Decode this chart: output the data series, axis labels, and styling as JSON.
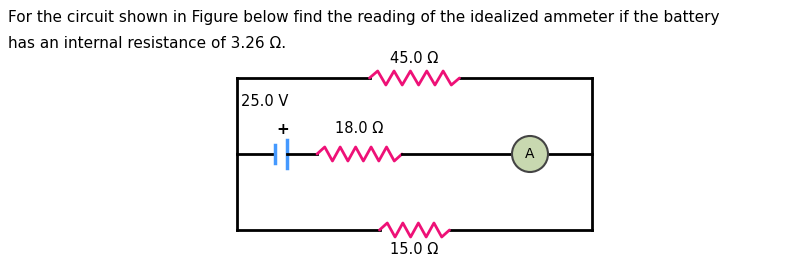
{
  "title_line1": "For the circuit shown in Figure below find the reading of the idealized ammeter if the battery",
  "title_line2": "has an internal resistance of 3.26 Ω.",
  "title_color": "#000000",
  "title_fontsize": 11.0,
  "bg_color": "#ffffff",
  "resistor_color": "#ee1177",
  "wire_color": "#000000",
  "battery_color": "#4499ff",
  "ammeter_fill": "#c8d8b0",
  "ammeter_edge": "#444444",
  "label_45": "45.0 Ω",
  "label_18": "18.0 Ω",
  "label_15": "15.0 Ω",
  "label_25v": "25.0 V",
  "label_plus": "+",
  "label_A": "A"
}
